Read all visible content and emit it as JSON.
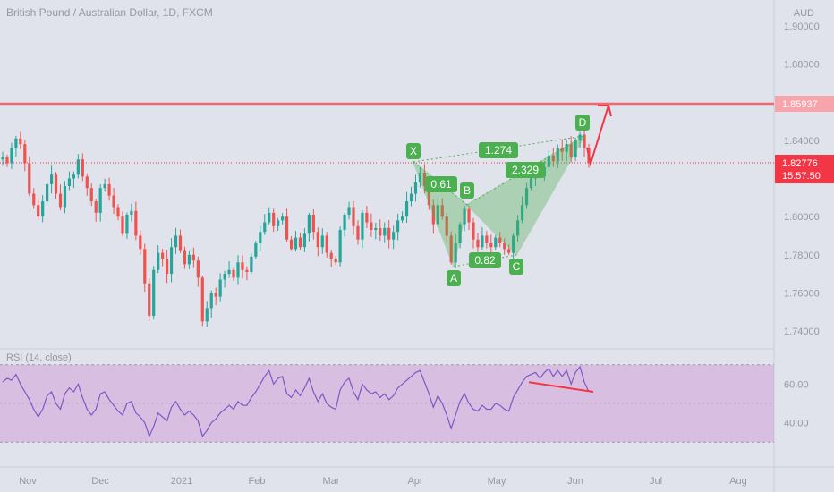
{
  "header": {
    "title": "British Pound / Australian Dollar, 1D, FXCM",
    "currency": "AUD"
  },
  "chart_data": {
    "type": "candlestick",
    "symbol_title": "British Pound / Australian Dollar, 1D, FXCM",
    "y_axis": {
      "unit": "AUD",
      "ticks": [
        "1.90000",
        "1.88000",
        "1.84000",
        "1.80000",
        "1.78000",
        "1.76000",
        "1.74000"
      ],
      "ylim": [
        1.735,
        1.905
      ]
    },
    "x_axis": {
      "labels": [
        "Nov",
        "Dec",
        "2021",
        "Feb",
        "Mar",
        "Apr",
        "May",
        "Jun",
        "Jul",
        "Aug"
      ]
    },
    "price_markers": {
      "resistance": {
        "value": "1.85937",
        "color": "#f7525f"
      },
      "last_price": {
        "value": "1.82776",
        "countdown": "15:57:50",
        "color": "#f23645"
      }
    },
    "pattern": {
      "points": [
        {
          "label": "X",
          "price": 1.827
        },
        {
          "label": "A",
          "price": 1.773
        },
        {
          "label": "B",
          "price": 1.806
        },
        {
          "label": "C",
          "price": 1.781
        },
        {
          "label": "D",
          "price": 1.841
        }
      ],
      "ratios": [
        "0.61",
        "0.82",
        "1.274",
        "2.329"
      ],
      "color": "#4caf50"
    },
    "candles_close_path": [
      [
        1.83,
        1.831
      ],
      [
        1.831,
        1.828
      ],
      [
        1.828,
        1.836
      ],
      [
        1.836,
        1.841
      ],
      [
        1.841,
        1.838
      ],
      [
        1.838,
        1.828
      ],
      [
        1.828,
        1.812
      ],
      [
        1.812,
        1.806
      ],
      [
        1.806,
        1.8
      ],
      [
        1.8,
        1.808
      ],
      [
        1.808,
        1.817
      ],
      [
        1.817,
        1.822
      ],
      [
        1.822,
        1.812
      ],
      [
        1.812,
        1.805
      ],
      [
        1.805,
        1.816
      ],
      [
        1.816,
        1.82
      ],
      [
        1.82,
        1.822
      ],
      [
        1.822,
        1.83
      ],
      [
        1.83,
        1.821
      ],
      [
        1.821,
        1.815
      ],
      [
        1.815,
        1.808
      ],
      [
        1.808,
        1.802
      ],
      [
        1.802,
        1.815
      ],
      [
        1.815,
        1.817
      ],
      [
        1.817,
        1.811
      ],
      [
        1.811,
        1.805
      ],
      [
        1.805,
        1.8
      ],
      [
        1.8,
        1.791
      ],
      [
        1.791,
        1.801
      ],
      [
        1.801,
        1.803
      ],
      [
        1.803,
        1.79
      ],
      [
        1.79,
        1.783
      ],
      [
        1.783,
        1.765
      ],
      [
        1.765,
        1.748
      ],
      [
        1.748,
        1.772
      ],
      [
        1.772,
        1.781
      ],
      [
        1.781,
        1.778
      ],
      [
        1.778,
        1.77
      ],
      [
        1.77,
        1.784
      ],
      [
        1.784,
        1.79
      ],
      [
        1.79,
        1.782
      ],
      [
        1.782,
        1.775
      ],
      [
        1.775,
        1.78
      ],
      [
        1.78,
        1.777
      ],
      [
        1.777,
        1.768
      ],
      [
        1.768,
        1.745
      ],
      [
        1.745,
        1.752
      ],
      [
        1.752,
        1.76
      ],
      [
        1.76,
        1.758
      ],
      [
        1.758,
        1.767
      ],
      [
        1.767,
        1.77
      ],
      [
        1.77,
        1.772
      ],
      [
        1.772,
        1.768
      ],
      [
        1.768,
        1.776
      ],
      [
        1.776,
        1.772
      ],
      [
        1.772,
        1.771
      ],
      [
        1.771,
        1.779
      ],
      [
        1.779,
        1.786
      ],
      [
        1.786,
        1.792
      ],
      [
        1.792,
        1.797
      ],
      [
        1.797,
        1.802
      ],
      [
        1.802,
        1.795
      ],
      [
        1.795,
        1.798
      ],
      [
        1.798,
        1.8
      ],
      [
        1.8,
        1.788
      ],
      [
        1.788,
        1.783
      ],
      [
        1.783,
        1.789
      ],
      [
        1.789,
        1.784
      ],
      [
        1.784,
        1.791
      ],
      [
        1.791,
        1.801
      ],
      [
        1.801,
        1.792
      ],
      [
        1.792,
        1.784
      ],
      [
        1.784,
        1.79
      ],
      [
        1.79,
        1.781
      ],
      [
        1.781,
        1.778
      ],
      [
        1.778,
        1.776
      ],
      [
        1.776,
        1.793
      ],
      [
        1.793,
        1.801
      ],
      [
        1.801,
        1.805
      ],
      [
        1.805,
        1.795
      ],
      [
        1.795,
        1.788
      ],
      [
        1.788,
        1.802
      ],
      [
        1.802,
        1.797
      ],
      [
        1.797,
        1.793
      ],
      [
        1.793,
        1.794
      ],
      [
        1.794,
        1.79
      ],
      [
        1.79,
        1.794
      ],
      [
        1.794,
        1.788
      ],
      [
        1.788,
        1.792
      ],
      [
        1.792,
        1.798
      ],
      [
        1.798,
        1.8
      ],
      [
        1.8,
        1.808
      ],
      [
        1.808,
        1.812
      ],
      [
        1.812,
        1.818
      ],
      [
        1.818,
        1.823
      ],
      [
        1.823,
        1.816
      ],
      [
        1.816,
        1.806
      ],
      [
        1.806,
        1.796
      ],
      [
        1.796,
        1.806
      ],
      [
        1.806,
        1.8
      ],
      [
        1.8,
        1.79
      ],
      [
        1.79,
        1.776
      ],
      [
        1.776,
        1.786
      ],
      [
        1.786,
        1.796
      ],
      [
        1.796,
        1.804
      ],
      [
        1.804,
        1.797
      ],
      [
        1.797,
        1.788
      ],
      [
        1.788,
        1.784
      ],
      [
        1.784,
        1.79
      ],
      [
        1.79,
        1.786
      ],
      [
        1.786,
        1.784
      ],
      [
        1.784,
        1.789
      ],
      [
        1.789,
        1.786
      ],
      [
        1.786,
        1.783
      ],
      [
        1.783,
        1.781
      ],
      [
        1.781,
        1.79
      ],
      [
        1.79,
        1.798
      ],
      [
        1.798,
        1.806
      ],
      [
        1.806,
        1.815
      ],
      [
        1.815,
        1.82
      ],
      [
        1.82,
        1.823
      ],
      [
        1.823,
        1.821
      ],
      [
        1.821,
        1.826
      ],
      [
        1.826,
        1.832
      ],
      [
        1.832,
        1.829
      ],
      [
        1.829,
        1.836
      ],
      [
        1.836,
        1.834
      ],
      [
        1.834,
        1.838
      ],
      [
        1.838,
        1.831
      ],
      [
        1.831,
        1.84
      ],
      [
        1.84,
        1.843
      ],
      [
        1.843,
        1.836
      ],
      [
        1.836,
        1.828
      ]
    ],
    "rsi": {
      "label": "RSI (14, close)",
      "ticks": [
        "60.00",
        "40.00"
      ],
      "band": [
        30,
        70
      ],
      "ylim": [
        25,
        75
      ],
      "values": [
        61,
        63,
        62,
        65,
        60,
        56,
        52,
        47,
        43,
        47,
        54,
        56,
        50,
        47,
        55,
        58,
        56,
        60,
        53,
        47,
        44,
        47,
        55,
        56,
        52,
        49,
        46,
        44,
        50,
        51,
        45,
        43,
        40,
        33,
        38,
        45,
        43,
        41,
        48,
        51,
        47,
        44,
        46,
        44,
        41,
        33,
        36,
        40,
        42,
        45,
        47,
        49,
        47,
        51,
        49,
        49,
        53,
        56,
        60,
        64,
        67,
        60,
        63,
        64,
        55,
        53,
        57,
        54,
        58,
        63,
        56,
        51,
        55,
        50,
        48,
        47,
        57,
        61,
        63,
        56,
        52,
        60,
        57,
        55,
        56,
        53,
        55,
        52,
        54,
        58,
        60,
        62,
        64,
        66,
        67,
        61,
        55,
        48,
        54,
        50,
        44,
        37,
        44,
        51,
        55,
        50,
        47,
        46,
        49,
        47,
        47,
        50,
        49,
        47,
        46,
        53,
        57,
        61,
        64,
        65,
        66,
        63,
        66,
        68,
        64,
        67,
        64,
        67,
        60,
        66,
        69,
        61,
        56
      ]
    },
    "rsi_divergence": {
      "color": "#f23645"
    },
    "colors": {
      "up": "#26a69a",
      "down": "#ef5350",
      "rsi_line": "#7e57c2",
      "rsi_band": "#ce93d8"
    }
  }
}
